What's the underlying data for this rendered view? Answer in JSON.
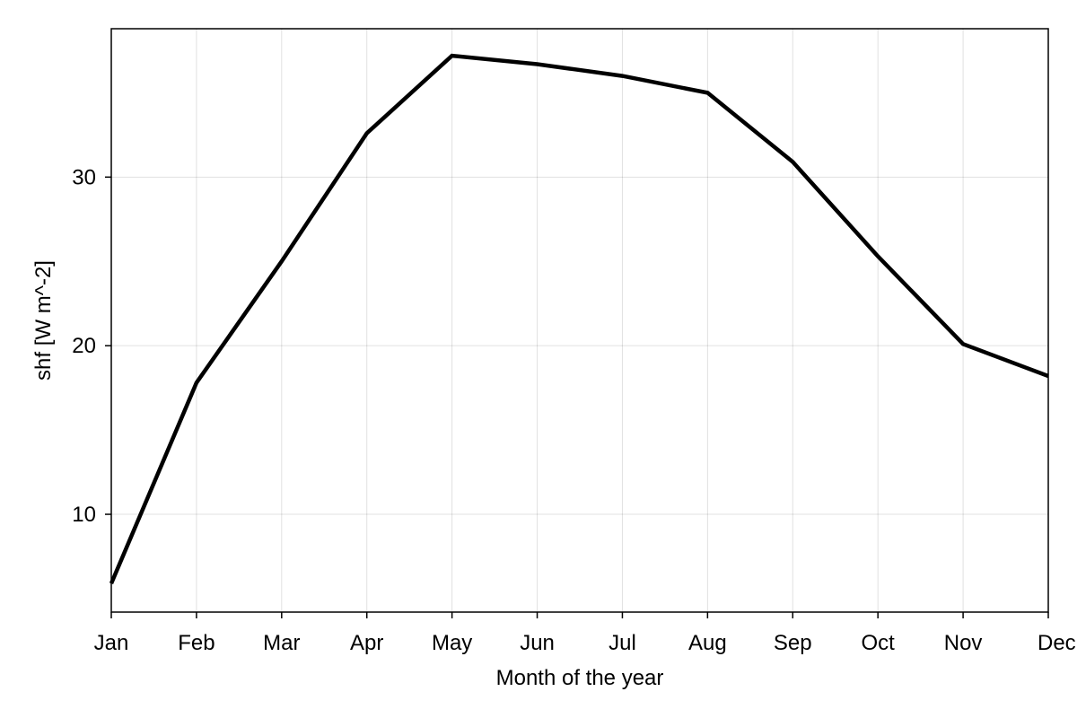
{
  "chart_data": {
    "type": "line",
    "title": "",
    "xlabel": "Month of the year",
    "ylabel": "shf [W m^-2]",
    "categories": [
      "Jan",
      "Feb",
      "Mar",
      "Apr",
      "May",
      "Jun",
      "Jul",
      "Aug",
      "Sep",
      "Oct",
      "Nov",
      "Dec"
    ],
    "series": [
      {
        "values": [
          5.9,
          17.8,
          25.0,
          32.6,
          37.2,
          36.7,
          36.0,
          35.0,
          30.9,
          25.3,
          20.1,
          18.2
        ],
        "color": "#000000"
      }
    ],
    "ylim": [
      4.2,
      38.8
    ],
    "yticks": [
      10,
      20,
      30
    ],
    "ytick_labels": [
      "10",
      "20",
      "30"
    ],
    "grid": true,
    "legend": "none"
  }
}
